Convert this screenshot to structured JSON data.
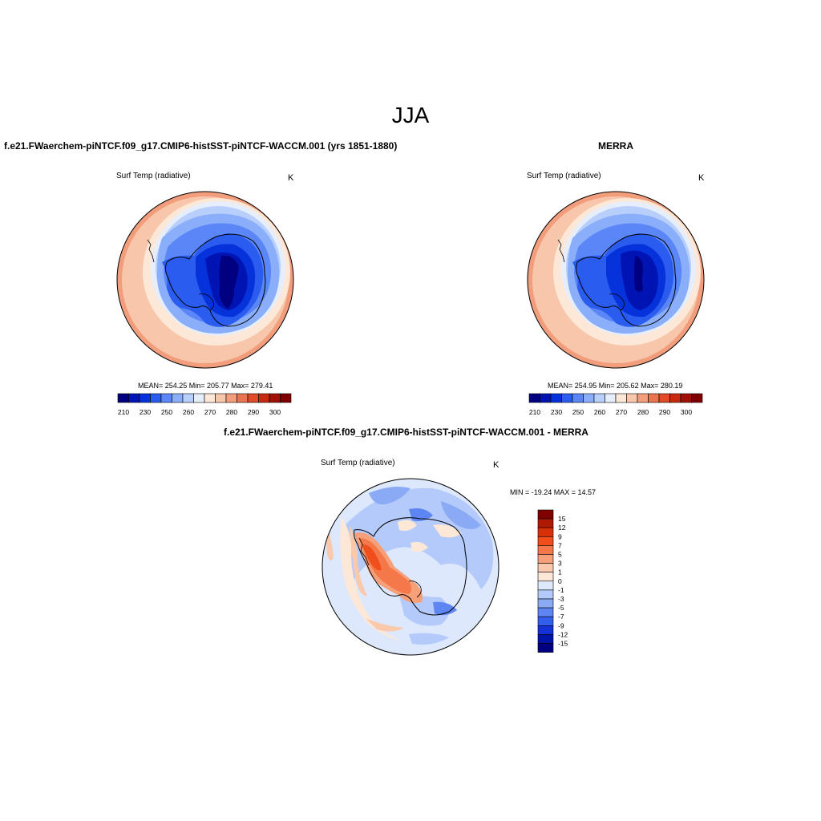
{
  "figure": {
    "title": "JJA"
  },
  "panels": {
    "model": {
      "title": "f.e21.FWaerchem-piNTCF.f09_g17.CMIP6-histSST-piNTCF-WACCM.001 (yrs 1851-1880)",
      "variable": "Surf Temp (radiative)",
      "units": "K",
      "stats": "MEAN= 254.25  Min= 205.77  Max= 279.41",
      "colorbar_ticks": [
        "210",
        "230",
        "250",
        "260",
        "270",
        "280",
        "290",
        "300"
      ]
    },
    "obs": {
      "title": "MERRA",
      "variable": "Surf Temp (radiative)",
      "units": "K",
      "stats": "MEAN= 254.95  Min= 205.62  Max= 280.19",
      "colorbar_ticks": [
        "210",
        "230",
        "250",
        "260",
        "270",
        "280",
        "290",
        "300"
      ]
    },
    "diff": {
      "title": "f.e21.FWaerchem-piNTCF.f09_g17.CMIP6-histSST-piNTCF-WACCM.001 - MERRA",
      "variable": "Surf Temp (radiative)",
      "units": "K",
      "stats": "MIN = -19.24 MAX =  14.57",
      "colorbar_ticks": [
        "15",
        "12",
        "9",
        "7",
        "5",
        "3",
        "1",
        "0",
        "-1",
        "-3",
        "-5",
        "-7",
        "-9",
        "-12",
        "-15"
      ]
    }
  },
  "colors": {
    "abs_scale": [
      "#000080",
      "#0014b4",
      "#0632dc",
      "#2a5cf0",
      "#5a86f8",
      "#8aaefa",
      "#b8cffb",
      "#e6eefc",
      "#fde8d8",
      "#f8c6aa",
      "#f29e7c",
      "#ea7450",
      "#e04a26",
      "#c82a10",
      "#a01006",
      "#800000"
    ],
    "diff_scale": [
      "#800000",
      "#b01a04",
      "#d83008",
      "#f04e1c",
      "#f4784a",
      "#f6a07a",
      "#fac8aa",
      "#fde8d8",
      "#dde8fc",
      "#b4cafa",
      "#8aaaf6",
      "#5e86f2",
      "#3260ec",
      "#1232d6",
      "#0014a8",
      "#000080"
    ],
    "coastline": "#000000"
  }
}
